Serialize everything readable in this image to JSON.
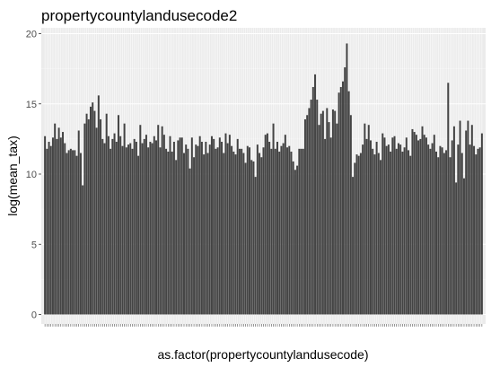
{
  "chart_data": {
    "type": "bar",
    "title": "propertycountylandusecode2",
    "xlabel": "as.factor(propertycountylandusecode)",
    "ylabel": "log(mean_tax)",
    "ylim": [
      0,
      20
    ],
    "yticks": [
      0,
      5,
      10,
      15,
      20
    ],
    "grid": true,
    "theme": "ggplot2 gray",
    "bar_color": "#444444",
    "panel_color": "#ebebeb",
    "values": [
      12.7,
      11.8,
      12.3,
      12.0,
      12.6,
      13.6,
      12.5,
      13.3,
      12.6,
      13.0,
      12.2,
      11.5,
      11.7,
      11.8,
      11.7,
      11.7,
      11.3,
      13.1,
      11.5,
      9.2,
      13.6,
      14.3,
      13.9,
      14.8,
      15.1,
      14.5,
      13.3,
      15.6,
      13.9,
      12.5,
      12.2,
      14.3,
      12.7,
      11.8,
      12.5,
      12.9,
      12.3,
      14.2,
      12.7,
      12.0,
      13.6,
      11.9,
      12.1,
      12.2,
      11.8,
      12.5,
      12.3,
      11.3,
      13.5,
      12.2,
      12.5,
      12.8,
      11.9,
      12.3,
      12.2,
      12.7,
      12.4,
      13.5,
      11.9,
      13.4,
      12.8,
      11.8,
      11.6,
      12.7,
      11.6,
      12.3,
      11.0,
      12.4,
      12.6,
      12.6,
      11.5,
      12.1,
      11.8,
      10.4,
      12.6,
      11.2,
      12.1,
      12.0,
      12.7,
      12.3,
      11.4,
      12.3,
      11.5,
      12.1,
      12.7,
      12.5,
      11.8,
      11.9,
      12.6,
      12.3,
      11.5,
      12.9,
      12.2,
      12.8,
      12.0,
      11.6,
      11.4,
      12.5,
      11.8,
      11.8,
      11.5,
      10.8,
      12.0,
      11.9,
      11.0,
      10.9,
      9.8,
      12.1,
      11.5,
      11.2,
      11.9,
      12.8,
      12.9,
      12.3,
      11.8,
      13.6,
      11.8,
      12.3,
      11.6,
      12.0,
      12.2,
      12.8,
      11.9,
      12.0,
      11.6,
      10.9,
      10.3,
      10.6,
      11.8,
      11.8,
      11.8,
      13.9,
      14.2,
      14.7,
      15.3,
      16.2,
      17.1,
      15.3,
      13.5,
      14.3,
      14.5,
      12.5,
      14.7,
      13.7,
      12.6,
      14.6,
      14.5,
      13.6,
      15.8,
      16.2,
      16.6,
      17.6,
      19.3,
      15.9,
      14.2,
      9.8,
      10.8,
      11.4,
      11.3,
      11.5,
      12.1,
      13.6,
      12.5,
      13.5,
      12.4,
      11.8,
      11.4,
      12.3,
      11.5,
      11.0,
      12.9,
      12.6,
      12.0,
      12.1,
      11.6,
      12.6,
      12.7,
      11.8,
      12.2,
      12.1,
      11.6,
      11.9,
      12.6,
      11.7,
      11.3,
      13.2,
      13.0,
      12.8,
      12.4,
      12.5,
      13.4,
      12.8,
      12.6,
      12.1,
      11.8,
      12.2,
      12.8,
      11.6,
      11.2,
      12.0,
      11.9,
      11.5,
      11.7,
      16.5,
      11.2,
      12.4,
      13.4,
      9.4,
      12.1,
      13.8,
      11.5,
      9.7,
      13.1,
      13.8,
      12.1,
      13.5,
      12.0,
      11.4,
      11.8,
      11.9,
      12.9
    ]
  }
}
